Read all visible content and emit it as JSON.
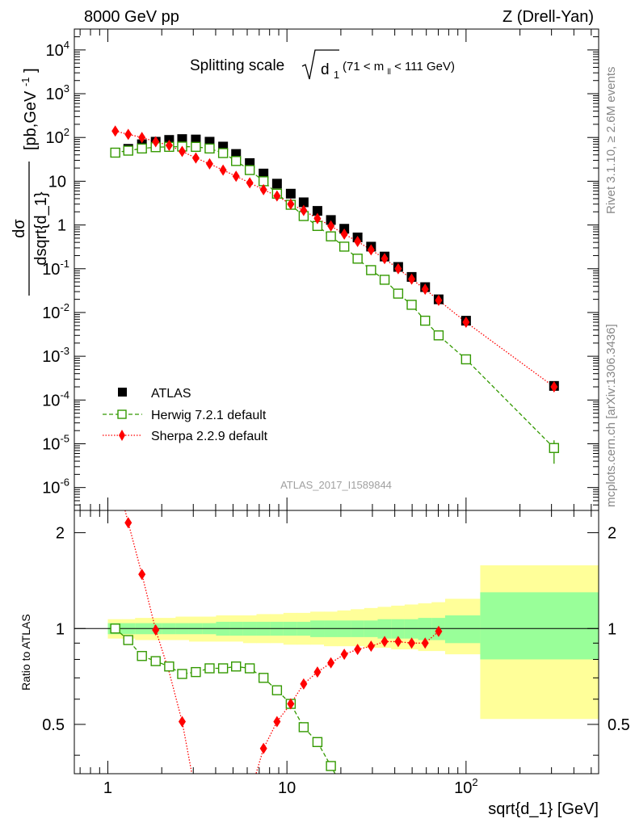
{
  "header": {
    "left": "8000 GeV pp",
    "right": "Z (Drell-Yan)"
  },
  "plot_title": {
    "main": "Splitting scale",
    "sqrt_arg": "d",
    "sqrt_sub": "1",
    "cut_pre": "(71 < m",
    "cut_sub": "ll",
    "cut_post": " < 111 GeV)"
  },
  "ylabel": {
    "numerator": "dσ",
    "denominator": "dsqrt{d_1}",
    "units": "[pb,GeV",
    "units_sup": "-1",
    "units_close": "]"
  },
  "ratio_ylabel": "Ratio to ATLAS",
  "xlabel": "sqrt{d_1} [GeV]",
  "side_text_top": "Rivet 3.1.10, ≥ 2.6M events",
  "side_text_bottom": "mcplots.cern.ch [arXiv:1306.3436]",
  "analysis_id": "ATLAS_2017_I1589844",
  "colors": {
    "atlas": "#000000",
    "herwig": "#339900",
    "sherpa": "#ff0000",
    "band_outer": "#ffff99",
    "band_inner": "#99ff99"
  },
  "chart_data": [
    {
      "type": "scatter",
      "panel": "main",
      "x_scale": "log",
      "y_scale": "log",
      "xlim": [
        0.65,
        550
      ],
      "ylim": [
        3e-07,
        30000.0
      ],
      "y_tick_labels": [
        "10-6",
        "10-5",
        "10-4",
        "10-3",
        "10-2",
        "10-1",
        "1",
        "10",
        "102",
        "103",
        "104"
      ],
      "legend_position": "bottom-left",
      "series": [
        {
          "name": "ATLAS",
          "style": "black squares",
          "x": [
            1.1,
            1.3,
            1.55,
            1.85,
            2.2,
            2.6,
            3.1,
            3.7,
            4.4,
            5.2,
            6.2,
            7.4,
            8.8,
            10.5,
            12.4,
            14.8,
            17.6,
            20.9,
            24.8,
            29.5,
            35.1,
            41.8,
            49.7,
            59.1,
            70.3,
            100,
            310
          ],
          "values": [
            45,
            55,
            70,
            80,
            88,
            92,
            90,
            80,
            62,
            42,
            26,
            15,
            8.8,
            5.2,
            3.3,
            2.1,
            1.3,
            0.82,
            0.52,
            0.32,
            0.19,
            0.11,
            0.065,
            0.038,
            0.02,
            0.0065,
            0.00021
          ]
        },
        {
          "name": "Herwig 7.2.1 default",
          "style": "green open squares, dashed",
          "x": [
            1.1,
            1.3,
            1.55,
            1.85,
            2.2,
            2.6,
            3.1,
            3.7,
            4.4,
            5.2,
            6.2,
            7.4,
            8.8,
            10.5,
            12.4,
            14.8,
            17.6,
            20.9,
            24.8,
            29.5,
            35.1,
            41.8,
            49.7,
            59.1,
            70.3,
            100,
            310
          ],
          "values": [
            45,
            50,
            56,
            60,
            61,
            62,
            61,
            56,
            44,
            29,
            18,
            10,
            5.2,
            2.9,
            1.6,
            0.95,
            0.55,
            0.32,
            0.17,
            0.093,
            0.056,
            0.027,
            0.015,
            0.0065,
            0.003,
            0.00085,
            8e-06
          ]
        },
        {
          "name": "Sherpa 2.2.9 default",
          "style": "red diamonds, dotted",
          "x": [
            1.1,
            1.3,
            1.55,
            1.85,
            2.2,
            2.6,
            3.1,
            3.7,
            4.4,
            5.2,
            6.2,
            7.4,
            8.8,
            10.5,
            12.4,
            14.8,
            17.6,
            20.9,
            24.8,
            29.5,
            35.1,
            41.8,
            49.7,
            59.1,
            70.3,
            100,
            310
          ],
          "values": [
            140,
            118,
            100,
            80,
            66,
            48,
            34,
            25,
            18,
            13,
            9.2,
            6.4,
            4.6,
            3.0,
            2.15,
            1.4,
            0.95,
            0.62,
            0.42,
            0.27,
            0.17,
            0.1,
            0.058,
            0.034,
            0.019,
            0.006,
            0.0002
          ]
        }
      ]
    },
    {
      "type": "scatter",
      "panel": "ratio",
      "x_scale": "log",
      "xlim": [
        0.65,
        550
      ],
      "ylim": [
        0.35,
        2.35
      ],
      "ylabel": "Ratio to ATLAS",
      "xlabel": "sqrt{d_1} [GeV]",
      "y_tick_labels": [
        "0.5",
        "1",
        "2"
      ],
      "x_tick_labels": [
        "1",
        "10",
        "102"
      ],
      "uncertainty_band_edges": [
        1.0,
        1.2,
        1.42,
        1.69,
        2.01,
        2.39,
        2.84,
        3.38,
        4.02,
        4.78,
        5.69,
        6.76,
        8.04,
        9.56,
        11.4,
        13.5,
        16.1,
        19.1,
        22.7,
        27.0,
        32.1,
        38.2,
        45.4,
        54.0,
        64.2,
        76.4,
        120,
        550
      ],
      "band_outer_lo": [
        0.93,
        0.93,
        0.92,
        0.92,
        0.92,
        0.92,
        0.91,
        0.91,
        0.91,
        0.91,
        0.9,
        0.9,
        0.9,
        0.89,
        0.89,
        0.89,
        0.88,
        0.88,
        0.88,
        0.87,
        0.87,
        0.86,
        0.86,
        0.85,
        0.85,
        0.83,
        0.52
      ],
      "band_outer_hi": [
        1.07,
        1.07,
        1.08,
        1.08,
        1.08,
        1.09,
        1.09,
        1.09,
        1.1,
        1.1,
        1.1,
        1.11,
        1.11,
        1.12,
        1.12,
        1.13,
        1.13,
        1.14,
        1.15,
        1.16,
        1.17,
        1.18,
        1.19,
        1.2,
        1.21,
        1.24,
        1.58
      ],
      "band_inner_lo": [
        0.96,
        0.96,
        0.96,
        0.96,
        0.96,
        0.96,
        0.96,
        0.96,
        0.95,
        0.95,
        0.95,
        0.95,
        0.95,
        0.95,
        0.95,
        0.94,
        0.94,
        0.94,
        0.94,
        0.94,
        0.93,
        0.93,
        0.93,
        0.92,
        0.92,
        0.9,
        0.8
      ],
      "band_inner_hi": [
        1.04,
        1.04,
        1.04,
        1.04,
        1.04,
        1.04,
        1.04,
        1.04,
        1.05,
        1.05,
        1.05,
        1.05,
        1.05,
        1.05,
        1.05,
        1.06,
        1.06,
        1.06,
        1.06,
        1.06,
        1.07,
        1.07,
        1.07,
        1.08,
        1.08,
        1.1,
        1.3
      ],
      "series": [
        {
          "name": "Herwig 7.2.1 default",
          "x": [
            1.1,
            1.3,
            1.55,
            1.85,
            2.2,
            2.6,
            3.1,
            3.7,
            4.4,
            5.2,
            6.2,
            7.4,
            8.8,
            10.5,
            12.4,
            14.8,
            17.6
          ],
          "values": [
            1.0,
            0.92,
            0.82,
            0.79,
            0.76,
            0.72,
            0.73,
            0.75,
            0.75,
            0.76,
            0.75,
            0.7,
            0.64,
            0.58,
            0.49,
            0.44,
            0.37
          ]
        },
        {
          "name": "Sherpa 2.2.9 default",
          "x": [
            1.3,
            1.55,
            1.85,
            2.6,
            7.4,
            8.8,
            10.5,
            12.4,
            14.8,
            17.6,
            20.9,
            24.8,
            29.5,
            35.1,
            41.8,
            49.7,
            59.1,
            70.3
          ],
          "values": [
            2.15,
            1.48,
            0.99,
            0.51,
            0.42,
            0.51,
            0.58,
            0.67,
            0.73,
            0.78,
            0.83,
            0.86,
            0.88,
            0.91,
            0.91,
            0.9,
            0.9,
            0.98
          ]
        }
      ]
    }
  ]
}
